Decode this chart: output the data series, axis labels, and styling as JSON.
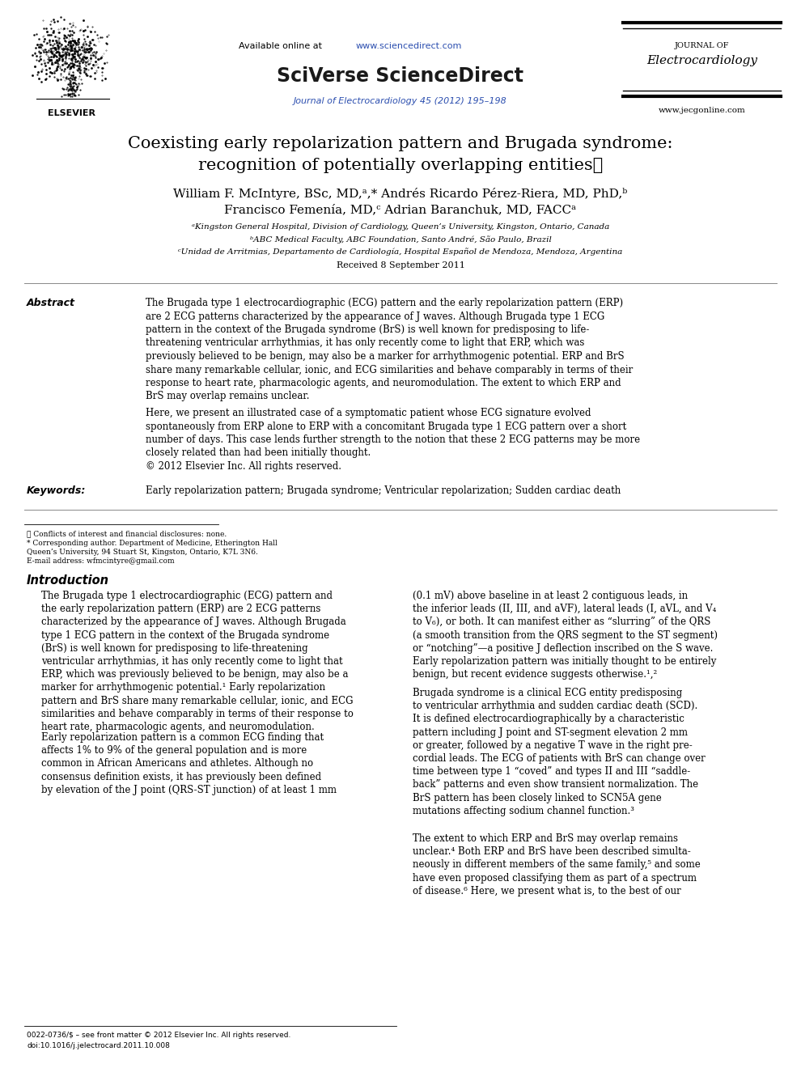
{
  "bg_color": "#ffffff",
  "header_available_text": "Available online at ",
  "header_url": "www.sciencedirect.com",
  "sciverse_text": "SciVerse ScienceDirect",
  "journal_line1": "Journal of Electrocardiology 45 (2012) 195–198",
  "journal_right_line1": "JOURNAL OF",
  "journal_right_line2": "Electrocardiology",
  "journal_right_url": "www.jecgonline.com",
  "paper_title_line1": "Coexisting early repolarization pattern and Brugada syndrome:",
  "paper_title_line2": "recognition of potentially overlapping entities☆",
  "authors_line1": "William F. McIntyre, BSc, MD,ᵃ,* Andrés Ricardo Pérez-Riera, MD, PhD,ᵇ",
  "authors_line2": "Francisco Femenía, MD,ᶜ Adrian Baranchuk, MD, FACCᵃ",
  "affil1": "ᵃKingston General Hospital, Division of Cardiology, Queen’s University, Kingston, Ontario, Canada",
  "affil2": "ᵇABC Medical Faculty, ABC Foundation, Santo André, São Paulo, Brazil",
  "affil3": "ᶜUnidad de Arritmias, Departamento de Cardiología, Hospital Español de Mendoza, Mendoza, Argentina",
  "received": "Received 8 September 2011",
  "abstract_label": "Abstract",
  "abstract_para1": "The Brugada type 1 electrocardiographic (ECG) pattern and the early repolarization pattern (ERP)\nare 2 ECG patterns characterized by the appearance of J waves. Although Brugada type 1 ECG\npattern in the context of the Brugada syndrome (BrS) is well known for predisposing to life-\nthreatening ventricular arrhythmias, it has only recently come to light that ERP, which was\npreviously believed to be benign, may also be a marker for arrhythmogenic potential. ERP and BrS\nshare many remarkable cellular, ionic, and ECG similarities and behave comparably in terms of their\nresponse to heart rate, pharmacologic agents, and neuromodulation. The extent to which ERP and\nBrS may overlap remains unclear.",
  "abstract_para2": "Here, we present an illustrated case of a symptomatic patient whose ECG signature evolved\nspontaneously from ERP alone to ERP with a concomitant Brugada type 1 ECG pattern over a short\nnumber of days. This case lends further strength to the notion that these 2 ECG patterns may be more\nclosely related than had been initially thought.\n© 2012 Elsevier Inc. All rights reserved.",
  "keywords_label": "Keywords:",
  "keywords_text": "Early repolarization pattern; Brugada syndrome; Ventricular repolarization; Sudden cardiac death",
  "intro_heading": "Introduction",
  "intro_col1_para1": "The Brugada type 1 electrocardiographic (ECG) pattern and\nthe early repolarization pattern (ERP) are 2 ECG patterns\ncharacterized by the appearance of J waves. Although Brugada\ntype 1 ECG pattern in the context of the Brugada syndrome\n(BrS) is well known for predisposing to life-threatening\nventricular arrhythmias, it has only recently come to light that\nERP, which was previously believed to be benign, may also be a\nmarker for arrhythmogenic potential.¹ Early repolarization\npattern and BrS share many remarkable cellular, ionic, and ECG\nsimilarities and behave comparably in terms of their response to\nheart rate, pharmacologic agents, and neuromodulation.",
  "intro_col1_para2": "Early repolarization pattern is a common ECG finding that\naffects 1% to 9% of the general population and is more\ncommon in African Americans and athletes. Although no\nconsensus definition exists, it has previously been defined\nby elevation of the J point (QRS-ST junction) of at least 1 mm",
  "intro_col2_para1": "(0.1 mV) above baseline in at least 2 contiguous leads, in\nthe inferior leads (II, III, and aVF), lateral leads (I, aVL, and V₄\nto V₆), or both. It can manifest either as “slurring” of the QRS\n(a smooth transition from the QRS segment to the ST segment)\nor “notching”—a positive J deflection inscribed on the S wave.\nEarly repolarization pattern was initially thought to be entirely\nbenign, but recent evidence suggests otherwise.¹,²",
  "intro_col2_para2": "Brugada syndrome is a clinical ECG entity predisposing\nto ventricular arrhythmia and sudden cardiac death (SCD).\nIt is defined electrocardiographically by a characteristic\npattern including J point and ST-segment elevation 2 mm\nor greater, followed by a negative T wave in the right pre-\ncordial leads. The ECG of patients with BrS can change over\ntime between type 1 “coved” and types II and III “saddle-\nback” patterns and even show transient normalization. The\nBrS pattern has been closely linked to SCN5A gene\nmutations affecting sodium channel function.³",
  "intro_col2_para3": "The extent to which ERP and BrS may overlap remains\nunclear.⁴ Both ERP and BrS have been described simulta-\nneously in different members of the same family,⁵ and some\nhave even proposed classifying them as part of a spectrum\nof disease.⁶ Here, we present what is, to the best of our",
  "footnote_star": "☆ Conflicts of interest and financial disclosures: none.",
  "footnote_corr_line1": "* Corresponding author. Department of Medicine, Etherington Hall",
  "footnote_corr_line2": "Queen’s University, 94 Stuart St, Kingston, Ontario, K7L 3N6.",
  "footnote_corr_line3": "E-mail address: wfmcintyre@gmail.com",
  "footnote_issn": "0022-0736/$ – see front matter © 2012 Elsevier Inc. All rights reserved.",
  "footnote_doi": "doi:10.1016/j.jelectrocard.2011.10.008",
  "blue_color": "#2B4EAF",
  "sciverse_blue": "#1a3a8a",
  "text_color": "#000000"
}
